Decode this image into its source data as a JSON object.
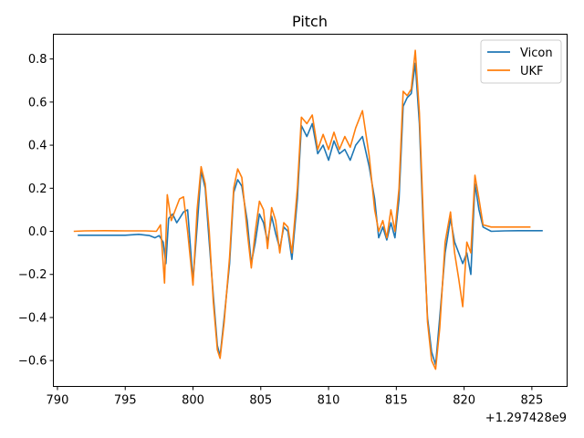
{
  "chart_data": {
    "type": "line",
    "title": "Pitch",
    "xlabel": "",
    "ylabel": "",
    "x_offset_label": "+1.297428e9",
    "xlim": [
      789.7,
      827.6
    ],
    "ylim": [
      -0.72,
      0.915
    ],
    "xticks": [
      790,
      795,
      800,
      805,
      810,
      815,
      820,
      825
    ],
    "yticks": [
      -0.6,
      -0.4,
      -0.2,
      0.0,
      0.2,
      0.4,
      0.6,
      0.8
    ],
    "ytick_labels": [
      "−0.6",
      "−0.4",
      "−0.2",
      "0.0",
      "0.2",
      "0.4",
      "0.6",
      "0.8"
    ],
    "grid": false,
    "legend_position": "top-right",
    "series": [
      {
        "name": "Vicon",
        "color": "#1f77b4",
        "points": [
          [
            791.5,
            -0.018
          ],
          [
            793.0,
            -0.018
          ],
          [
            795.0,
            -0.018
          ],
          [
            796.0,
            -0.014
          ],
          [
            796.8,
            -0.02
          ],
          [
            797.2,
            -0.03
          ],
          [
            797.5,
            -0.02
          ],
          [
            797.8,
            -0.05
          ],
          [
            798.0,
            -0.15
          ],
          [
            798.2,
            0.06
          ],
          [
            798.5,
            0.08
          ],
          [
            798.8,
            0.04
          ],
          [
            799.0,
            0.06
          ],
          [
            799.3,
            0.09
          ],
          [
            799.6,
            0.1
          ],
          [
            800.0,
            -0.23
          ],
          [
            800.3,
            0.02
          ],
          [
            800.6,
            0.28
          ],
          [
            800.9,
            0.2
          ],
          [
            801.2,
            -0.05
          ],
          [
            801.5,
            -0.3
          ],
          [
            801.8,
            -0.53
          ],
          [
            802.0,
            -0.58
          ],
          [
            802.3,
            -0.4
          ],
          [
            802.7,
            -0.15
          ],
          [
            803.0,
            0.18
          ],
          [
            803.3,
            0.24
          ],
          [
            803.6,
            0.21
          ],
          [
            804.0,
            0.05
          ],
          [
            804.3,
            -0.15
          ],
          [
            804.6,
            -0.05
          ],
          [
            804.9,
            0.08
          ],
          [
            805.2,
            0.04
          ],
          [
            805.5,
            -0.05
          ],
          [
            805.8,
            0.07
          ],
          [
            806.1,
            -0.01
          ],
          [
            806.4,
            -0.08
          ],
          [
            806.7,
            0.02
          ],
          [
            807.0,
            0.0
          ],
          [
            807.3,
            -0.13
          ],
          [
            807.7,
            0.15
          ],
          [
            808.0,
            0.49
          ],
          [
            808.4,
            0.44
          ],
          [
            808.8,
            0.5
          ],
          [
            809.2,
            0.36
          ],
          [
            809.6,
            0.4
          ],
          [
            810.0,
            0.33
          ],
          [
            810.4,
            0.42
          ],
          [
            810.8,
            0.36
          ],
          [
            811.2,
            0.38
          ],
          [
            811.6,
            0.33
          ],
          [
            812.0,
            0.4
          ],
          [
            812.5,
            0.44
          ],
          [
            813.0,
            0.3
          ],
          [
            813.4,
            0.15
          ],
          [
            813.7,
            -0.03
          ],
          [
            814.0,
            0.02
          ],
          [
            814.3,
            -0.04
          ],
          [
            814.6,
            0.04
          ],
          [
            814.9,
            -0.03
          ],
          [
            815.2,
            0.15
          ],
          [
            815.5,
            0.58
          ],
          [
            815.8,
            0.62
          ],
          [
            816.1,
            0.64
          ],
          [
            816.4,
            0.78
          ],
          [
            816.7,
            0.5
          ],
          [
            817.0,
            0.0
          ],
          [
            817.3,
            -0.4
          ],
          [
            817.6,
            -0.56
          ],
          [
            817.9,
            -0.62
          ],
          [
            818.2,
            -0.4
          ],
          [
            818.6,
            -0.1
          ],
          [
            819.0,
            0.06
          ],
          [
            819.3,
            -0.05
          ],
          [
            819.6,
            -0.1
          ],
          [
            819.9,
            -0.15
          ],
          [
            820.2,
            -0.1
          ],
          [
            820.5,
            -0.2
          ],
          [
            820.8,
            0.22
          ],
          [
            821.1,
            0.1
          ],
          [
            821.4,
            0.02
          ],
          [
            822.0,
            0.0
          ],
          [
            823.0,
            0.002
          ],
          [
            824.0,
            0.003
          ],
          [
            825.8,
            0.003
          ]
        ]
      },
      {
        "name": "UKF",
        "color": "#ff7f0e",
        "points": [
          [
            791.2,
            0.0
          ],
          [
            792.0,
            0.002
          ],
          [
            793.5,
            0.003
          ],
          [
            795.0,
            0.002
          ],
          [
            796.5,
            0.002
          ],
          [
            797.3,
            0.0
          ],
          [
            797.6,
            0.03
          ],
          [
            797.9,
            -0.24
          ],
          [
            798.1,
            0.17
          ],
          [
            798.4,
            0.05
          ],
          [
            798.7,
            0.1
          ],
          [
            799.0,
            0.15
          ],
          [
            799.3,
            0.16
          ],
          [
            799.6,
            0.0
          ],
          [
            800.0,
            -0.25
          ],
          [
            800.3,
            0.1
          ],
          [
            800.6,
            0.3
          ],
          [
            800.9,
            0.22
          ],
          [
            801.2,
            0.0
          ],
          [
            801.5,
            -0.33
          ],
          [
            801.8,
            -0.55
          ],
          [
            802.0,
            -0.59
          ],
          [
            802.3,
            -0.42
          ],
          [
            802.7,
            -0.12
          ],
          [
            803.0,
            0.2
          ],
          [
            803.3,
            0.29
          ],
          [
            803.6,
            0.25
          ],
          [
            804.0,
            0.0
          ],
          [
            804.3,
            -0.17
          ],
          [
            804.6,
            0.0
          ],
          [
            804.9,
            0.14
          ],
          [
            805.2,
            0.1
          ],
          [
            805.5,
            -0.08
          ],
          [
            805.8,
            0.11
          ],
          [
            806.1,
            0.05
          ],
          [
            806.4,
            -0.1
          ],
          [
            806.7,
            0.04
          ],
          [
            807.0,
            0.02
          ],
          [
            807.3,
            -0.1
          ],
          [
            807.7,
            0.2
          ],
          [
            808.0,
            0.53
          ],
          [
            808.4,
            0.5
          ],
          [
            808.8,
            0.54
          ],
          [
            809.2,
            0.38
          ],
          [
            809.6,
            0.45
          ],
          [
            810.0,
            0.38
          ],
          [
            810.4,
            0.46
          ],
          [
            810.8,
            0.38
          ],
          [
            811.2,
            0.44
          ],
          [
            811.6,
            0.39
          ],
          [
            812.0,
            0.48
          ],
          [
            812.5,
            0.56
          ],
          [
            813.0,
            0.35
          ],
          [
            813.4,
            0.1
          ],
          [
            813.7,
            0.0
          ],
          [
            814.0,
            0.05
          ],
          [
            814.3,
            -0.03
          ],
          [
            814.6,
            0.1
          ],
          [
            814.9,
            0.0
          ],
          [
            815.2,
            0.2
          ],
          [
            815.5,
            0.65
          ],
          [
            815.8,
            0.63
          ],
          [
            816.1,
            0.66
          ],
          [
            816.4,
            0.84
          ],
          [
            816.7,
            0.55
          ],
          [
            817.0,
            0.05
          ],
          [
            817.3,
            -0.42
          ],
          [
            817.6,
            -0.6
          ],
          [
            817.9,
            -0.64
          ],
          [
            818.2,
            -0.45
          ],
          [
            818.6,
            -0.05
          ],
          [
            819.0,
            0.09
          ],
          [
            819.3,
            -0.1
          ],
          [
            819.6,
            -0.22
          ],
          [
            819.9,
            -0.35
          ],
          [
            820.2,
            -0.05
          ],
          [
            820.5,
            -0.1
          ],
          [
            820.8,
            0.26
          ],
          [
            821.1,
            0.15
          ],
          [
            821.4,
            0.03
          ],
          [
            822.0,
            0.02
          ],
          [
            823.5,
            0.02
          ],
          [
            824.9,
            0.02
          ]
        ]
      }
    ]
  }
}
